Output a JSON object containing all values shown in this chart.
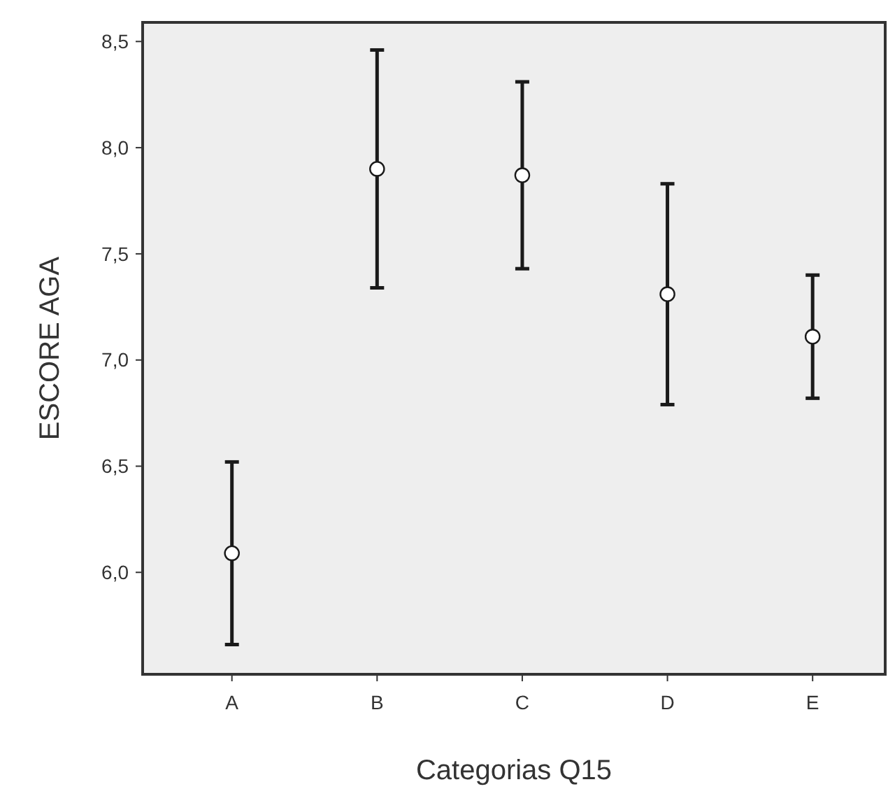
{
  "chart_data": {
    "type": "scatter",
    "xlabel": "Categorias Q15",
    "ylabel": "ESCORE AGA",
    "categories": [
      "A",
      "B",
      "C",
      "D",
      "E"
    ],
    "values": [
      6.09,
      7.9,
      7.87,
      7.31,
      7.11
    ],
    "errors": [
      0.43,
      0.56,
      0.44,
      0.52,
      0.29
    ],
    "color": "#ffffff",
    "marker": "circle",
    "grid": false,
    "ylim": [
      5.52,
      8.59
    ],
    "yticks": [
      {
        "value": 6,
        "label": "6,0"
      },
      {
        "value": 6.5,
        "label": "6,5"
      },
      {
        "value": 7,
        "label": "7,0"
      },
      {
        "value": 7.5,
        "label": "7,5"
      },
      {
        "value": 8,
        "label": "8,0"
      },
      {
        "value": 8.5,
        "label": "8,5"
      }
    ]
  }
}
